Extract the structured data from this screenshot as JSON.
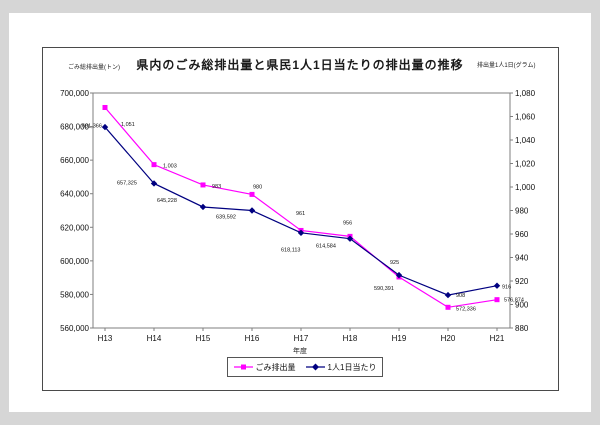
{
  "chart": {
    "title": "県内のごみ総排出量と県民1人1日当たりの排出量の推移",
    "left_axis_unit": "ごみ総排出量(トン)",
    "right_axis_unit": "排出量1人1日(グラム)",
    "x_axis_title": "年度",
    "legend": [
      {
        "label": "ごみ排出量",
        "color": "#ff00ff",
        "marker": "square"
      },
      {
        "label": "1人1日当たり",
        "color": "#000080",
        "marker": "diamond"
      }
    ]
  },
  "chart_data": {
    "type": "line",
    "categories": [
      "H13",
      "H14",
      "H15",
      "H16",
      "H17",
      "H18",
      "H19",
      "H20",
      "H21"
    ],
    "series": [
      {
        "name": "ごみ排出量",
        "axis": "left",
        "color": "#ff00ff",
        "marker": "square",
        "values": [
          691366,
          657325,
          645228,
          639592,
          618113,
          614584,
          590391,
          572336,
          576874
        ],
        "labels": [
          "691,366",
          "657,325",
          "645,228",
          "639,592",
          "618,113",
          "614,584",
          "590,391",
          "572,336",
          "576,874"
        ]
      },
      {
        "name": "1人1日当たり",
        "axis": "right",
        "color": "#000080",
        "marker": "diamond",
        "values": [
          1051,
          1003,
          983,
          980,
          961,
          956,
          925,
          908,
          916
        ],
        "labels": [
          "1,051",
          "1,003",
          "983",
          "980",
          "961",
          "956",
          "925",
          "908",
          "916"
        ]
      }
    ],
    "left_axis": {
      "min": 560000,
      "max": 700000,
      "step": 20000,
      "tick_labels": [
        "700,000",
        "680,000",
        "660,000",
        "640,000",
        "620,000",
        "600,000",
        "580,000",
        "560,000"
      ]
    },
    "right_axis": {
      "min": 880,
      "max": 1080,
      "step": 20,
      "tick_labels": [
        "1,080",
        "1,060",
        "1,040",
        "1,020",
        "1,000",
        "980",
        "960",
        "940",
        "920",
        "900",
        "880"
      ]
    },
    "grid": false,
    "legend_position": "bottom",
    "data_labels": true
  }
}
